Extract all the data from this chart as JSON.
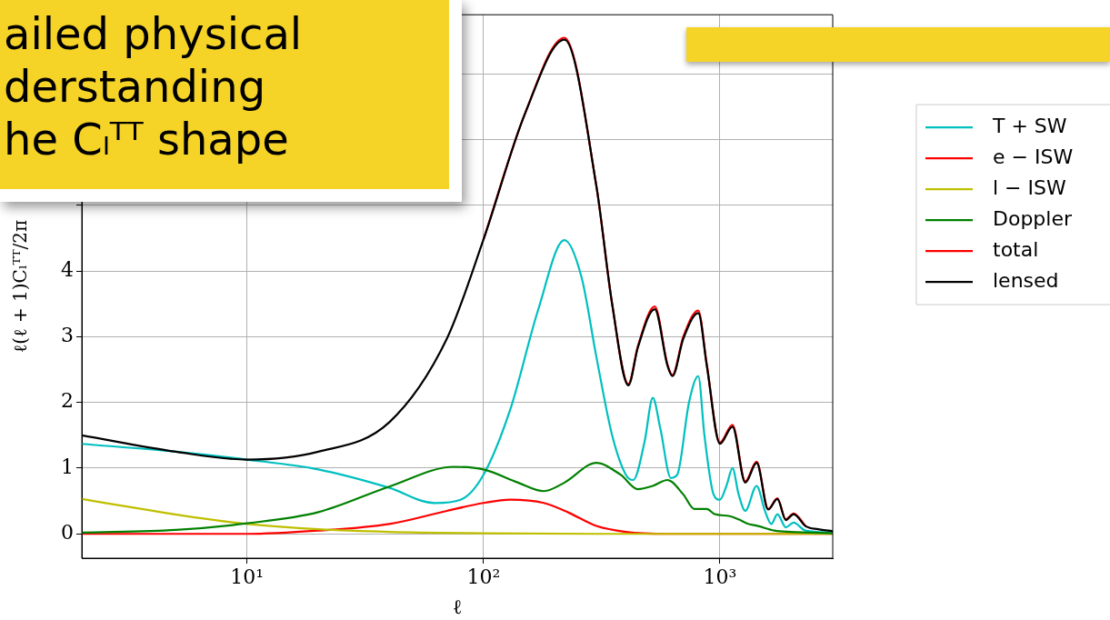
{
  "chart_data": {
    "type": "line",
    "xlabel": "ℓ",
    "ylabel": "ℓ(ℓ + 1)Cₗᵀᵀ/2π",
    "log": "x",
    "grid": true,
    "legend": "right",
    "line_style": "solid",
    "marker": "none",
    "xlim": [
      2,
      3000
    ],
    "ylim": [
      -0.37,
      7.9
    ],
    "xticks": [
      {
        "value": 10,
        "label": "10¹"
      },
      {
        "value": 100,
        "label": "10²"
      },
      {
        "value": 1000,
        "label": "10³"
      }
    ],
    "yticks": [
      0,
      1,
      2,
      3,
      4,
      {
        "value": 5,
        "label": null
      },
      {
        "value": 6,
        "label": null
      },
      {
        "value": 7,
        "label": null
      }
    ],
    "annotations": [
      "ailed physical\nderstanding\nhe Cₗᵀᵀ shape"
    ],
    "series": [
      {
        "name": "T + SW",
        "color": "#00bfbf",
        "x": [
          2,
          5,
          10,
          20,
          40,
          62,
          80,
          100,
          130,
          170,
          220,
          260,
          300,
          350,
          400,
          430,
          480,
          520,
          560,
          620,
          660,
          740,
          810,
          860,
          940,
          1000,
          1070,
          1130,
          1200,
          1280,
          1430,
          1550,
          1650,
          1750,
          1900,
          2050,
          2300,
          3000
        ],
        "values": [
          1.37,
          1.25,
          1.13,
          0.98,
          0.7,
          0.47,
          0.52,
          0.9,
          1.9,
          3.4,
          4.47,
          3.9,
          2.7,
          1.5,
          0.9,
          0.82,
          1.4,
          2.07,
          1.6,
          0.85,
          0.9,
          2.0,
          2.4,
          1.5,
          0.6,
          0.52,
          0.75,
          1.0,
          0.6,
          0.35,
          0.73,
          0.35,
          0.15,
          0.3,
          0.1,
          0.17,
          0.05,
          0.02
        ]
      },
      {
        "name": "e − ISW",
        "color": "#ff0000",
        "x": [
          2,
          10,
          20,
          40,
          70,
          100,
          130,
          180,
          230,
          300,
          400,
          600,
          3000
        ],
        "values": [
          0,
          0,
          0.05,
          0.15,
          0.35,
          0.47,
          0.52,
          0.47,
          0.32,
          0.12,
          0.03,
          0,
          0
        ]
      },
      {
        "name": "l − ISW",
        "color": "#bfbf00",
        "x": [
          2,
          4,
          6,
          10,
          20,
          40,
          100,
          300,
          3000
        ],
        "values": [
          0.53,
          0.35,
          0.25,
          0.15,
          0.07,
          0.03,
          0.01,
          0,
          0
        ]
      },
      {
        "name": "Doppler",
        "color": "#008000",
        "x": [
          2,
          5,
          10,
          20,
          40,
          75,
          100,
          140,
          180,
          220,
          300,
          380,
          450,
          520,
          600,
          700,
          780,
          880,
          950,
          1100,
          1200,
          1300,
          1450,
          1700,
          2000,
          3000
        ],
        "values": [
          0.02,
          0.06,
          0.16,
          0.33,
          0.72,
          1.02,
          0.98,
          0.78,
          0.65,
          0.78,
          1.08,
          0.9,
          0.68,
          0.73,
          0.82,
          0.6,
          0.38,
          0.38,
          0.3,
          0.27,
          0.22,
          0.16,
          0.12,
          0.05,
          0.03,
          0.01
        ]
      },
      {
        "name": "total",
        "color": "#ff0000",
        "x": [
          100,
          150,
          220,
          300,
          350,
          410,
          450,
          530,
          600,
          630,
          700,
          810,
          880,
          1000,
          1130,
          1280,
          1430,
          1600,
          1750,
          1900,
          2050,
          2300
        ],
        "values": [
          4.48,
          6.4,
          7.55,
          5.3,
          3.5,
          2.28,
          2.86,
          3.46,
          2.58,
          2.42,
          3.0,
          3.4,
          2.58,
          1.39,
          1.66,
          0.8,
          1.1,
          0.38,
          0.54,
          0.22,
          0.31,
          0.12
        ]
      },
      {
        "name": "lensed",
        "color": "#000000",
        "x": [
          2,
          5,
          10,
          20,
          40,
          70,
          100,
          150,
          220,
          300,
          350,
          410,
          450,
          530,
          600,
          630,
          700,
          810,
          880,
          1000,
          1130,
          1280,
          1430,
          1600,
          1750,
          1900,
          2050,
          2300,
          2600,
          3000
        ],
        "values": [
          1.5,
          1.25,
          1.13,
          1.25,
          1.7,
          2.97,
          4.48,
          6.4,
          7.52,
          5.3,
          3.5,
          2.26,
          2.84,
          3.42,
          2.56,
          2.4,
          2.97,
          3.36,
          2.56,
          1.37,
          1.63,
          0.78,
          1.08,
          0.37,
          0.53,
          0.21,
          0.3,
          0.12,
          0.07,
          0.04
        ]
      }
    ]
  }
}
